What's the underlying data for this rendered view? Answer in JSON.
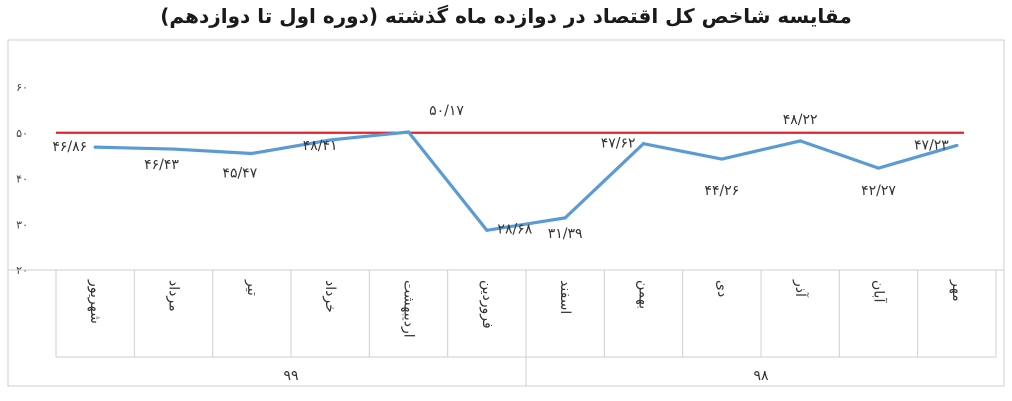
{
  "chart_data": {
    "type": "line",
    "title": "مقایسه شاخص کل اقتصاد در دوازده ماه گذشته (دوره اول تا دوازدهم)",
    "categories": [
      "مهر",
      "آبان",
      "آذر",
      "دی",
      "بهمن",
      "اسفند",
      "فروردین",
      "اردیبهشت",
      "خرداد",
      "تیر",
      "مرداد",
      "شهریور"
    ],
    "groups": [
      {
        "label": "۹۸",
        "count": 6
      },
      {
        "label": "۹۹",
        "count": 6
      }
    ],
    "series": [
      {
        "values": [
          47.23,
          42.27,
          48.22,
          44.26,
          47.62,
          31.39,
          28.68,
          50.17,
          48.41,
          45.47,
          46.43,
          46.86
        ],
        "labels": [
          "۴۷/۲۳",
          "۴۲/۲۷",
          "۴۸/۲۲",
          "۴۴/۲۶",
          "۴۷/۶۲",
          "۳۱/۳۹",
          "۲۸/۶۸",
          "۵۰/۱۷",
          "۴۸/۴۱",
          "۴۵/۴۷",
          "۴۶/۴۳",
          "۴۶/۸۶"
        ],
        "color": "#5b9bd5"
      }
    ],
    "reference_line": {
      "value": 50,
      "color": "#e0262c"
    },
    "yticks": [
      20,
      30,
      40,
      50,
      60
    ],
    "ytick_labels": [
      "۲۰",
      "۳۰",
      "۴۰",
      "۵۰",
      "۶۰"
    ],
    "ylim": [
      20,
      60
    ],
    "grid": false
  }
}
